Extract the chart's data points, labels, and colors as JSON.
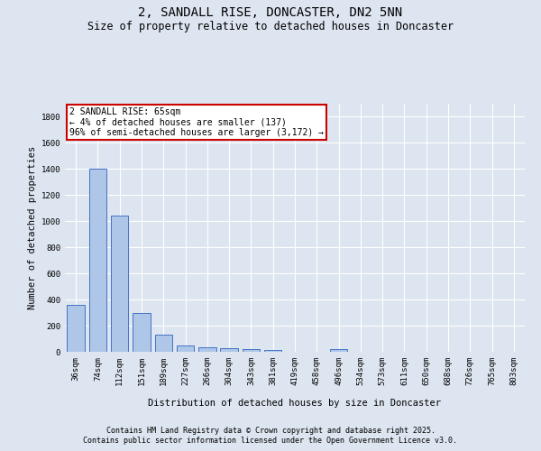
{
  "title": "2, SANDALL RISE, DONCASTER, DN2 5NN",
  "subtitle": "Size of property relative to detached houses in Doncaster",
  "xlabel": "Distribution of detached houses by size in Doncaster",
  "ylabel": "Number of detached properties",
  "categories": [
    "36sqm",
    "74sqm",
    "112sqm",
    "151sqm",
    "189sqm",
    "227sqm",
    "266sqm",
    "304sqm",
    "343sqm",
    "381sqm",
    "419sqm",
    "458sqm",
    "496sqm",
    "534sqm",
    "573sqm",
    "611sqm",
    "650sqm",
    "688sqm",
    "726sqm",
    "765sqm",
    "803sqm"
  ],
  "values": [
    360,
    1400,
    1040,
    295,
    130,
    45,
    38,
    30,
    20,
    15,
    0,
    0,
    18,
    0,
    0,
    0,
    0,
    0,
    0,
    0,
    0
  ],
  "bar_color": "#aec6e8",
  "bar_edge_color": "#4472c4",
  "annotation_text": "2 SANDALL RISE: 65sqm\n← 4% of detached houses are smaller (137)\n96% of semi-detached houses are larger (3,172) →",
  "annotation_box_color": "#ffffff",
  "annotation_box_edge": "#cc0000",
  "ylim": [
    0,
    1900
  ],
  "yticks": [
    0,
    200,
    400,
    600,
    800,
    1000,
    1200,
    1400,
    1600,
    1800
  ],
  "background_color": "#dde5f0",
  "grid_color": "#ffffff",
  "footer_line1": "Contains HM Land Registry data © Crown copyright and database right 2025.",
  "footer_line2": "Contains public sector information licensed under the Open Government Licence v3.0.",
  "title_fontsize": 10,
  "subtitle_fontsize": 8.5,
  "axis_label_fontsize": 7.5,
  "tick_fontsize": 6.5,
  "annotation_fontsize": 7,
  "footer_fontsize": 6
}
